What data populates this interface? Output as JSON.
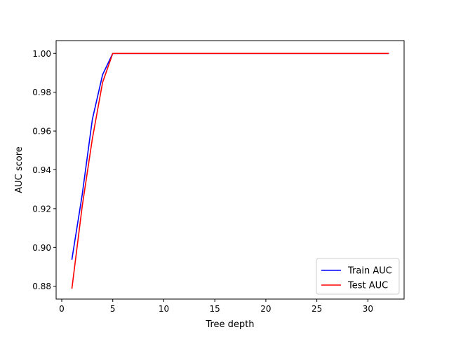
{
  "chart_data": {
    "type": "line",
    "title": "",
    "xlabel": "Tree depth",
    "ylabel": "AUC score",
    "xlim": [
      -0.55,
      33.55
    ],
    "ylim": [
      0.8734,
      1.0066
    ],
    "xticks": [
      0,
      5,
      10,
      15,
      20,
      25,
      30
    ],
    "yticks": [
      0.88,
      0.9,
      0.92,
      0.94,
      0.96,
      0.98,
      1.0
    ],
    "ytick_labels": [
      "0.88",
      "0.90",
      "0.92",
      "0.94",
      "0.96",
      "0.98",
      "1.00"
    ],
    "grid": false,
    "legend_position": "lower-right",
    "series": [
      {
        "name": "Train AUC",
        "color": "#0000ff",
        "x": [
          1,
          2,
          3,
          4,
          5,
          6,
          7,
          8,
          9,
          10,
          11,
          12,
          13,
          14,
          15,
          16,
          17,
          18,
          19,
          20,
          21,
          22,
          23,
          24,
          25,
          26,
          27,
          28,
          29,
          30,
          31,
          32
        ],
        "values": [
          0.894,
          0.927,
          0.966,
          0.989,
          1.0,
          1.0,
          1.0,
          1.0,
          1.0,
          1.0,
          1.0,
          1.0,
          1.0,
          1.0,
          1.0,
          1.0,
          1.0,
          1.0,
          1.0,
          1.0,
          1.0,
          1.0,
          1.0,
          1.0,
          1.0,
          1.0,
          1.0,
          1.0,
          1.0,
          1.0,
          1.0,
          1.0
        ]
      },
      {
        "name": "Test AUC",
        "color": "#ff0000",
        "x": [
          1,
          2,
          3,
          4,
          5,
          6,
          7,
          8,
          9,
          10,
          11,
          12,
          13,
          14,
          15,
          16,
          17,
          18,
          19,
          20,
          21,
          22,
          23,
          24,
          25,
          26,
          27,
          28,
          29,
          30,
          31,
          32
        ],
        "values": [
          0.879,
          0.921,
          0.956,
          0.985,
          1.0,
          1.0,
          1.0,
          1.0,
          1.0,
          1.0,
          1.0,
          1.0,
          1.0,
          1.0,
          1.0,
          1.0,
          1.0,
          1.0,
          1.0,
          1.0,
          1.0,
          1.0,
          1.0,
          1.0,
          1.0,
          1.0,
          1.0,
          1.0,
          1.0,
          1.0,
          1.0,
          1.0
        ]
      }
    ]
  }
}
